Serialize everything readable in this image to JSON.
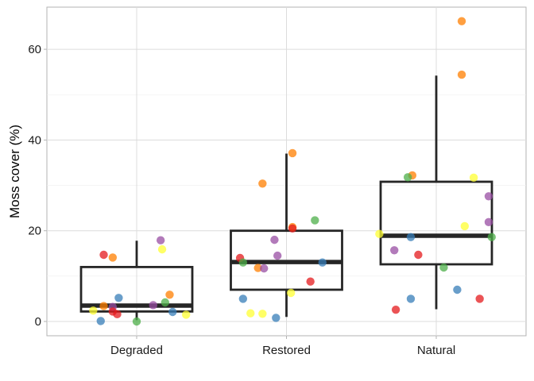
{
  "chart_data": {
    "type": "boxplot",
    "xlabel": "",
    "ylabel": "Moss cover (%)",
    "ylim": [
      -3,
      69
    ],
    "yticks": [
      0,
      20,
      40,
      60
    ],
    "grid": true,
    "categories": [
      "Degraded",
      "Restored",
      "Natural"
    ],
    "boxes": [
      {
        "category": "Degraded",
        "whisker_low": 0.3,
        "q1": 2.2,
        "median": 3.5,
        "q3": 12.0,
        "whisker_high": 17.8
      },
      {
        "category": "Restored",
        "whisker_low": 1.0,
        "q1": 7.0,
        "median": 13.1,
        "q3": 20.0,
        "whisker_high": 37.0
      },
      {
        "category": "Natural",
        "whisker_low": 2.7,
        "q1": 12.6,
        "median": 18.9,
        "q3": 30.8,
        "whisker_high": 54.2
      }
    ],
    "points": [
      {
        "category": "Degraded",
        "jitter": -0.22,
        "y": 14.7,
        "color": "#e41a1c"
      },
      {
        "category": "Degraded",
        "jitter": -0.16,
        "y": 14.1,
        "color": "#ff7f00"
      },
      {
        "category": "Degraded",
        "jitter": 0.16,
        "y": 17.9,
        "color": "#984ea3"
      },
      {
        "category": "Degraded",
        "jitter": 0.17,
        "y": 15.9,
        "color": "#ffff33"
      },
      {
        "category": "Degraded",
        "jitter": -0.12,
        "y": 5.2,
        "color": "#377eb8"
      },
      {
        "category": "Degraded",
        "jitter": 0.22,
        "y": 5.9,
        "color": "#ff7f00"
      },
      {
        "category": "Degraded",
        "jitter": -0.22,
        "y": 3.4,
        "color": "#ff7f00"
      },
      {
        "category": "Degraded",
        "jitter": -0.16,
        "y": 3.2,
        "color": "#984ea3"
      },
      {
        "category": "Degraded",
        "jitter": 0.11,
        "y": 3.6,
        "color": "#984ea3"
      },
      {
        "category": "Degraded",
        "jitter": 0.19,
        "y": 4.2,
        "color": "#4daf4a"
      },
      {
        "category": "Degraded",
        "jitter": -0.29,
        "y": 2.4,
        "color": "#ffff33"
      },
      {
        "category": "Degraded",
        "jitter": -0.16,
        "y": 2.2,
        "color": "#e41a1c"
      },
      {
        "category": "Degraded",
        "jitter": -0.13,
        "y": 1.6,
        "color": "#e41a1c"
      },
      {
        "category": "Degraded",
        "jitter": 0.24,
        "y": 2.1,
        "color": "#377eb8"
      },
      {
        "category": "Degraded",
        "jitter": 0.33,
        "y": 1.5,
        "color": "#ffff33"
      },
      {
        "category": "Degraded",
        "jitter": -0.24,
        "y": 0.1,
        "color": "#377eb8"
      },
      {
        "category": "Degraded",
        "jitter": 0.0,
        "y": 0.0,
        "color": "#4daf4a"
      },
      {
        "category": "Restored",
        "jitter": 0.04,
        "y": 37.1,
        "color": "#ff7f00"
      },
      {
        "category": "Restored",
        "jitter": -0.16,
        "y": 30.4,
        "color": "#ff7f00"
      },
      {
        "category": "Restored",
        "jitter": 0.19,
        "y": 22.3,
        "color": "#4daf4a"
      },
      {
        "category": "Restored",
        "jitter": 0.04,
        "y": 20.8,
        "color": "#ff7f00"
      },
      {
        "category": "Restored",
        "jitter": 0.04,
        "y": 20.5,
        "color": "#e41a1c"
      },
      {
        "category": "Restored",
        "jitter": -0.08,
        "y": 18.0,
        "color": "#984ea3"
      },
      {
        "category": "Restored",
        "jitter": -0.06,
        "y": 14.5,
        "color": "#984ea3"
      },
      {
        "category": "Restored",
        "jitter": -0.31,
        "y": 14.0,
        "color": "#e41a1c"
      },
      {
        "category": "Restored",
        "jitter": -0.29,
        "y": 13.0,
        "color": "#4daf4a"
      },
      {
        "category": "Restored",
        "jitter": 0.24,
        "y": 13.0,
        "color": "#377eb8"
      },
      {
        "category": "Restored",
        "jitter": -0.19,
        "y": 11.8,
        "color": "#ff7f00"
      },
      {
        "category": "Restored",
        "jitter": -0.15,
        "y": 11.7,
        "color": "#984ea3"
      },
      {
        "category": "Restored",
        "jitter": 0.16,
        "y": 8.8,
        "color": "#e41a1c"
      },
      {
        "category": "Restored",
        "jitter": 0.03,
        "y": 6.3,
        "color": "#ffff33"
      },
      {
        "category": "Restored",
        "jitter": -0.29,
        "y": 5.0,
        "color": "#377eb8"
      },
      {
        "category": "Restored",
        "jitter": -0.24,
        "y": 1.8,
        "color": "#ffff33"
      },
      {
        "category": "Restored",
        "jitter": -0.16,
        "y": 1.7,
        "color": "#ffff33"
      },
      {
        "category": "Restored",
        "jitter": -0.07,
        "y": 0.8,
        "color": "#377eb8"
      },
      {
        "category": "Natural",
        "jitter": 0.17,
        "y": 66.2,
        "color": "#ff7f00"
      },
      {
        "category": "Natural",
        "jitter": 0.17,
        "y": 54.4,
        "color": "#ff7f00"
      },
      {
        "category": "Natural",
        "jitter": -0.16,
        "y": 32.2,
        "color": "#ff7f00"
      },
      {
        "category": "Natural",
        "jitter": -0.19,
        "y": 31.8,
        "color": "#4daf4a"
      },
      {
        "category": "Natural",
        "jitter": 0.25,
        "y": 31.7,
        "color": "#ffff33"
      },
      {
        "category": "Natural",
        "jitter": 0.35,
        "y": 27.6,
        "color": "#984ea3"
      },
      {
        "category": "Natural",
        "jitter": 0.35,
        "y": 21.9,
        "color": "#984ea3"
      },
      {
        "category": "Natural",
        "jitter": 0.19,
        "y": 21.0,
        "color": "#ffff33"
      },
      {
        "category": "Natural",
        "jitter": -0.38,
        "y": 19.3,
        "color": "#ffff33"
      },
      {
        "category": "Natural",
        "jitter": -0.17,
        "y": 18.6,
        "color": "#377eb8"
      },
      {
        "category": "Natural",
        "jitter": 0.37,
        "y": 18.6,
        "color": "#4daf4a"
      },
      {
        "category": "Natural",
        "jitter": -0.28,
        "y": 15.7,
        "color": "#984ea3"
      },
      {
        "category": "Natural",
        "jitter": -0.12,
        "y": 14.7,
        "color": "#e41a1c"
      },
      {
        "category": "Natural",
        "jitter": 0.05,
        "y": 11.9,
        "color": "#4daf4a"
      },
      {
        "category": "Natural",
        "jitter": 0.14,
        "y": 7.0,
        "color": "#377eb8"
      },
      {
        "category": "Natural",
        "jitter": -0.17,
        "y": 5.0,
        "color": "#377eb8"
      },
      {
        "category": "Natural",
        "jitter": 0.29,
        "y": 5.0,
        "color": "#e41a1c"
      },
      {
        "category": "Natural",
        "jitter": -0.27,
        "y": 2.6,
        "color": "#e41a1c"
      }
    ]
  }
}
